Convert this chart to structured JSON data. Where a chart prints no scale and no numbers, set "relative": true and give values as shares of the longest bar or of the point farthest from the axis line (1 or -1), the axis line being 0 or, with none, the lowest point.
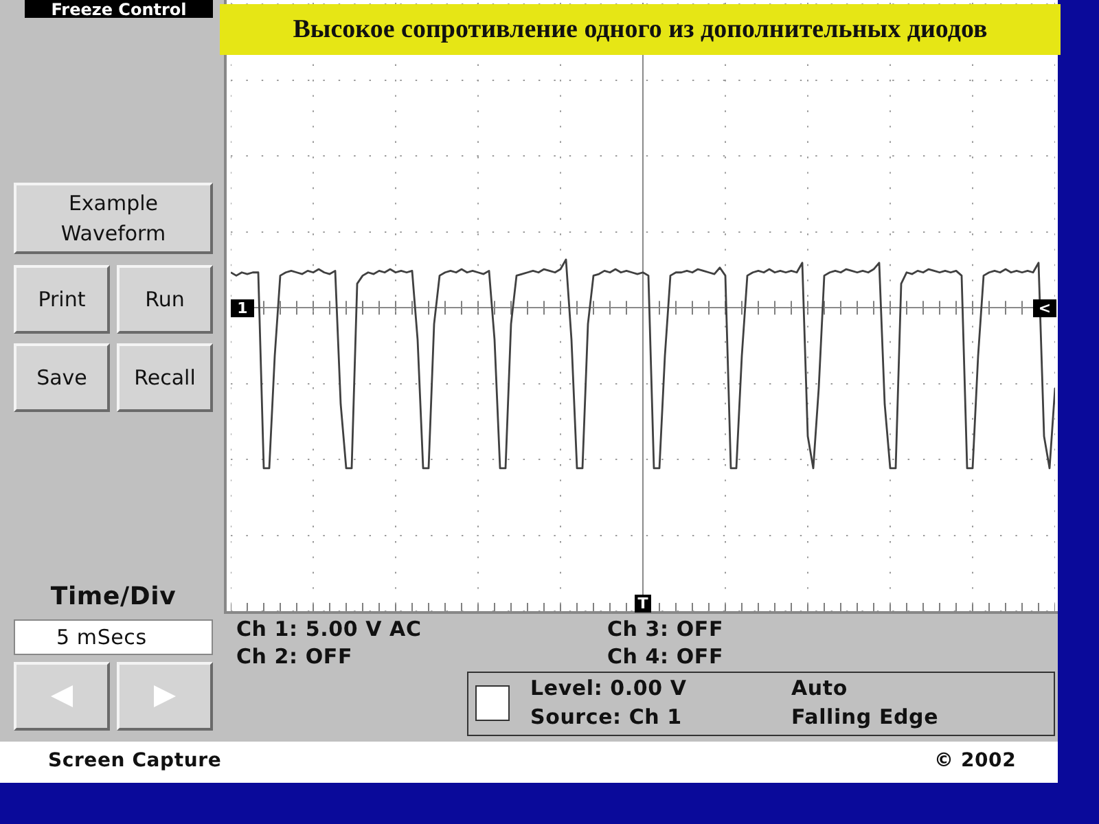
{
  "chart_data": {
    "type": "line",
    "title": "Высокое сопротивление одного из дополнительных диодов",
    "relative": true,
    "grid": true,
    "legend": false,
    "marker": "none",
    "line_style": "solid",
    "categories": [
      null,
      null,
      null,
      null,
      null,
      null,
      null,
      null,
      null,
      null,
      null,
      null,
      null,
      null,
      null,
      null,
      null,
      null,
      null,
      null,
      null,
      null,
      null,
      null,
      null,
      null,
      null,
      null,
      null,
      null,
      null,
      null,
      null,
      null,
      null,
      null,
      null,
      null,
      null,
      null,
      null,
      null,
      null,
      null,
      null,
      null,
      null,
      null,
      null,
      null,
      null,
      null,
      null,
      null,
      null,
      null,
      null,
      null,
      null,
      null,
      null,
      null,
      null,
      null,
      null,
      null,
      null,
      null,
      null,
      null,
      null,
      null,
      null,
      null,
      null,
      null,
      null,
      null,
      null,
      null,
      null,
      null,
      null,
      null,
      null,
      null,
      null,
      null,
      null,
      null,
      null,
      null,
      null,
      null,
      null,
      null,
      null,
      null,
      null,
      null,
      null,
      null,
      null,
      null,
      null,
      null,
      null,
      null,
      null,
      null,
      null,
      null,
      null,
      null,
      null,
      null,
      null,
      null,
      null,
      null,
      null,
      null,
      null,
      null,
      null,
      null,
      null,
      null,
      null,
      null,
      null,
      null,
      null,
      null,
      null,
      null,
      null,
      null,
      null,
      null,
      null,
      null,
      null,
      null,
      null,
      null,
      null,
      null,
      null,
      null,
      null
    ],
    "series": [
      {
        "color": "#404040",
        "values": [
          0.22,
          0.2,
          0.22,
          0.21,
          0.22,
          0.22,
          -1,
          -1,
          -0.3,
          0.2,
          0.22,
          0.23,
          0.22,
          0.21,
          0.23,
          0.22,
          0.24,
          0.22,
          0.21,
          0.23,
          -0.6,
          -1,
          -1,
          0.15,
          0.2,
          0.22,
          0.21,
          0.23,
          0.22,
          0.24,
          0.22,
          0.23,
          0.22,
          0.23,
          -0.2,
          -1,
          -1,
          -0.1,
          0.2,
          0.22,
          0.23,
          0.22,
          0.24,
          0.22,
          0.23,
          0.22,
          0.21,
          0.23,
          -0.2,
          -1,
          -1,
          -0.1,
          0.2,
          0.21,
          0.22,
          0.23,
          0.22,
          0.24,
          0.23,
          0.22,
          0.24,
          0.3,
          -0.2,
          -1,
          -1,
          -0.1,
          0.2,
          0.21,
          0.23,
          0.22,
          0.24,
          0.22,
          0.23,
          0.22,
          0.21,
          0.22,
          0.2,
          -1,
          -1,
          -0.3,
          0.2,
          0.22,
          0.22,
          0.23,
          0.22,
          0.24,
          0.23,
          0.22,
          0.21,
          0.25,
          0.2,
          -1,
          -1,
          -0.3,
          0.2,
          0.22,
          0.23,
          0.22,
          0.24,
          0.22,
          0.23,
          0.22,
          0.23,
          0.22,
          0.28,
          -0.8,
          -1,
          -0.5,
          0.2,
          0.22,
          0.23,
          0.22,
          0.24,
          0.23,
          0.22,
          0.23,
          0.22,
          0.24,
          0.28,
          -0.6,
          -1,
          -1,
          0.15,
          0.22,
          0.21,
          0.23,
          0.22,
          0.24,
          0.23,
          0.22,
          0.23,
          0.22,
          0.23,
          0.2,
          -1,
          -1,
          -0.3,
          0.2,
          0.22,
          0.23,
          0.22,
          0.24,
          0.22,
          0.23,
          0.22,
          0.23,
          0.22,
          0.28,
          -0.8,
          -1,
          -0.5
        ]
      }
    ],
    "annotations": [
      "Freeze Control",
      "Example Waveform",
      "Print",
      "Run",
      "Save",
      "Recall",
      "Time/Div",
      "5 mSecs",
      "1",
      "<",
      "T",
      "Ch 1: 5.00 V AC",
      "Ch 2: OFF",
      "Ch 3: OFF",
      "Ch 4: OFF",
      "Level: 0.00 V",
      "Source: Ch 1",
      "Auto",
      "Falling Edge",
      "Screen Capture",
      "© 2002"
    ]
  }
}
